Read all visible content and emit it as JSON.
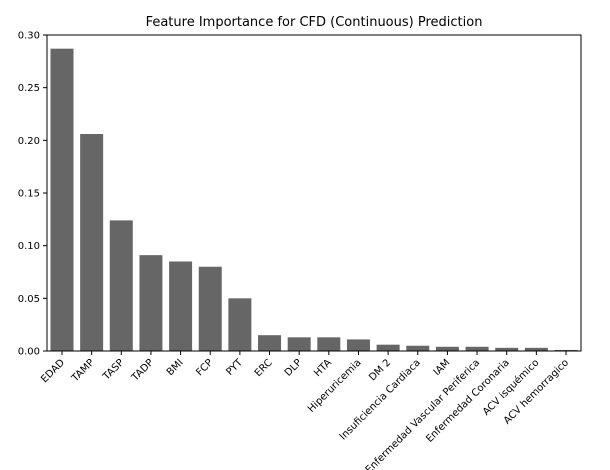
{
  "chart_data": {
    "type": "bar",
    "title": "Feature Importance for CFD (Continuous) Prediction",
    "xlabel": "",
    "ylabel": "",
    "categories": [
      "EDAD",
      "TAMP",
      "TASP",
      "TADP",
      "BMI",
      "FCP",
      "PYT",
      "ERC",
      "DLP",
      "HTA",
      "Hiperuricemia",
      "DM 2",
      "Insuficiencia Cardiaca",
      "IAM",
      "Enfermedad Vascular Periferica",
      "Enfermedad Coronaria",
      "ACV isquémico",
      "ACV hemorragico"
    ],
    "values": [
      0.287,
      0.206,
      0.124,
      0.091,
      0.085,
      0.08,
      0.05,
      0.015,
      0.013,
      0.013,
      0.011,
      0.006,
      0.005,
      0.004,
      0.004,
      0.003,
      0.003,
      0.001
    ],
    "ylim": [
      0,
      0.3
    ],
    "yticks": [
      0.0,
      0.05,
      0.1,
      0.15,
      0.2,
      0.25,
      0.3
    ],
    "ytick_labels": [
      "0.00",
      "0.05",
      "0.10",
      "0.15",
      "0.20",
      "0.25",
      "0.30"
    ],
    "bar_color": "#666666",
    "grid": false,
    "legend": "none"
  }
}
